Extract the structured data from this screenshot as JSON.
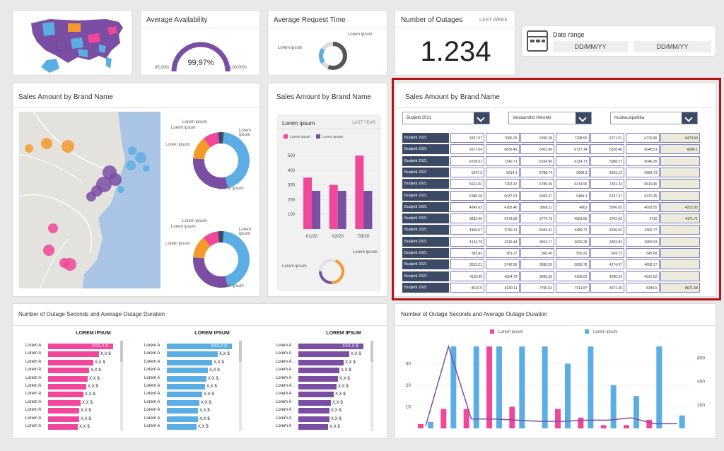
{
  "map_card": {
    "map_icon": "us-map-icon"
  },
  "availability": {
    "title": "Average Availability",
    "value": "99,97%",
    "min_label": "95,00%",
    "max_label": "100,00%",
    "fraction": 0.9
  },
  "request_time": {
    "title": "Average Request Time",
    "label_right": "Lorem ipsum",
    "label_left": "Lorem ipsum"
  },
  "outages": {
    "title": "Number of Outages",
    "period": "LAST WEEK",
    "value": "1.234"
  },
  "date_range": {
    "icon": "calendar-window-icon",
    "title": "Date range",
    "from": "DD/MM/YY",
    "to": "DD/MM/YY"
  },
  "sales_map": {
    "title": "Sales Amount by Brand Name",
    "donut_labels": [
      "Lorem ipsum",
      "Lorem ipsum",
      "Lorem ipsum",
      "Lorem ipsum",
      "Lorem ipsum"
    ]
  },
  "sales_bar": {
    "title": "Sales Amount by Brand Name",
    "inner_title": "Lorem ipsum",
    "period": "LAST YEAR",
    "legend": [
      "Lorem ipsum",
      "Lorem ipsum"
    ],
    "bottom_label_right": "Lorem ipsum",
    "bottom_label_left": "Lorem ipsum"
  },
  "sales_table": {
    "title": "Sales Amount by Brand Name",
    "filters": [
      "Budjetti 2021",
      "Vastaanotto Helsinki",
      "Kuukausipalkka"
    ],
    "row_label": "Budjetti 2021",
    "rows": [
      [
        "3297.57",
        "7086.26",
        "6399.28",
        "7298.55",
        "6271.51",
        "6726.86",
        "6479.59"
      ],
      [
        "6617.04",
        "6836.49",
        "6002.96",
        "6727.14",
        "6326.46",
        "6046.51",
        "6694.1"
      ],
      [
        "6228.61",
        "7140.71",
        "6334.96",
        "6314.73",
        "5988.27",
        "6046.26",
        ""
      ],
      [
        "6347.3",
        "6214.1",
        "5788.74",
        "6909.9",
        "6263.13",
        "6683.73",
        ""
      ],
      [
        "5622.02",
        "7203.47",
        "6789.36",
        "6474.96",
        "7301.34",
        "6619.46",
        ""
      ],
      [
        "6388.28",
        "6637.91",
        "6369.37",
        "6484.1",
        "6237.37",
        "6370.35",
        ""
      ],
      [
        "4849.62",
        "4282.46",
        "3868.11",
        "4861",
        "3996.65",
        "4093.55",
        "4212.92"
      ],
      [
        "3832.46",
        "4178.28",
        "3774.73",
        "4581.95",
        "3702.63",
        "3710",
        "4171.71"
      ],
      [
        "4460.67",
        "5782.11",
        "5943.41",
        "4489.72",
        "5920.02",
        "4362.77",
        ""
      ],
      [
        "4124.79",
        "4316.44",
        "3653.17",
        "3692.28",
        "3993.82",
        "3955.93",
        ""
      ],
      [
        "583.43",
        "561.27",
        "560.46",
        "556.22",
        "604.72",
        "545.68",
        ""
      ],
      [
        "3633.21",
        "3742.96",
        "3680.05",
        "3896.78",
        "4274.97",
        "4698.17",
        ""
      ],
      [
        "4118.65",
        "4054.73",
        "3995.39",
        "4168.03",
        "4286.23",
        "4010.52",
        ""
      ],
      [
        "8610.5",
        "8230.11",
        "7760.62",
        "7911.87",
        "8371.36",
        "8344.5",
        "8671.68"
      ]
    ]
  },
  "outage_bars": {
    "title": "Number of Outage Seconds and Average Outage Duration",
    "group_title": "LOREM IPSUM",
    "item_label": "Lorem A",
    "top_value": "XXX,X $",
    "value": "X,X $"
  },
  "outage_combo": {
    "title": "Number of Outage Seconds and Average Outage Duration",
    "legend": [
      "Lorem ipsum",
      "Lorem ipsum"
    ]
  },
  "colors": {
    "pink": "#f0479a",
    "blue": "#5baee3",
    "purple": "#7a4ea3",
    "orange": "#f39a2b",
    "navy": "#3c4a66",
    "red_frame": "#b31217"
  },
  "chart_data": [
    {
      "type": "bar",
      "categories": [
        "01/20",
        "02/20",
        "03/20"
      ],
      "series": [
        {
          "name": "Lorem ipsum",
          "values": [
            350,
            300,
            500
          ]
        },
        {
          "name": "Lorem ipsum",
          "values": [
            260,
            260,
            260
          ]
        }
      ],
      "ylim": [
        0,
        500
      ],
      "yticks": [
        "100",
        "200",
        "300",
        "400",
        "500"
      ]
    },
    {
      "type": "bar",
      "series": [
        {
          "name": "Lorem ipsum",
          "values": [
            2,
            9,
            9,
            38,
            10,
            0,
            9,
            5,
            1.5,
            1.5,
            4,
            0
          ]
        },
        {
          "name": "Lorem ipsum",
          "values": [
            3,
            38,
            38,
            38,
            38,
            38,
            30,
            38,
            20,
            15,
            38,
            6
          ]
        }
      ],
      "line": [
        20,
        700,
        80,
        80,
        70,
        60,
        60,
        70,
        70,
        90,
        40,
        40
      ],
      "ylim": [
        0,
        40
      ],
      "yticks": [
        "10",
        "20",
        "30"
      ],
      "y2ticks": [
        "200",
        "400",
        "600"
      ]
    }
  ]
}
